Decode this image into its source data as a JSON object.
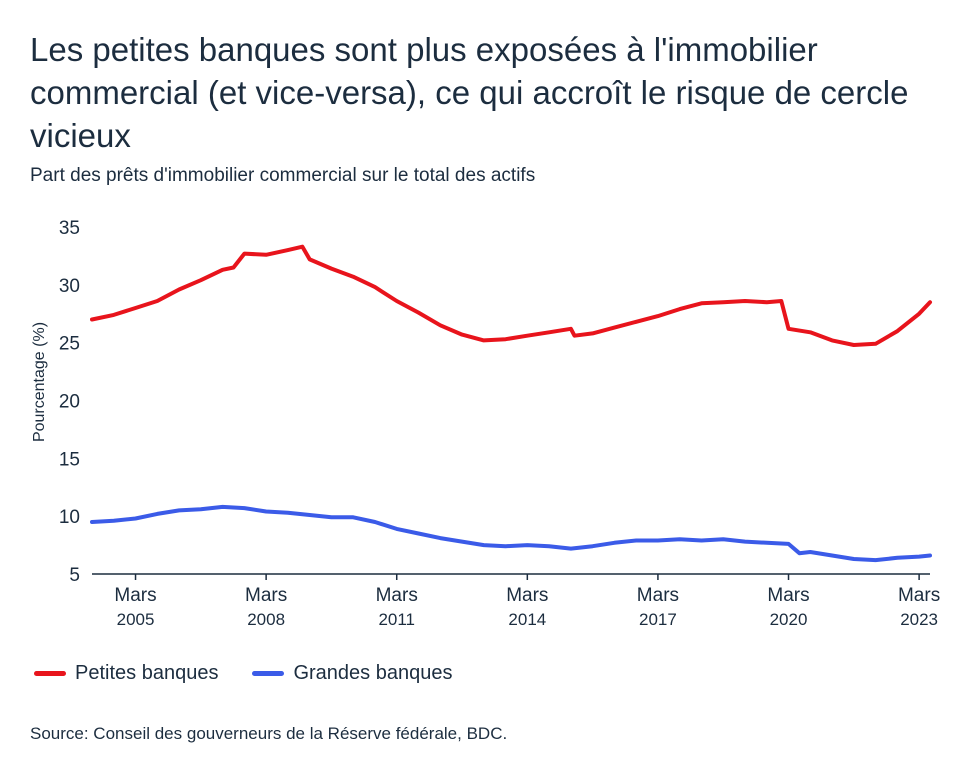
{
  "title": "Les petites banques sont plus exposées à l'immobilier commercial (et vice-versa), ce qui accroît le risque de cercle vicieux",
  "subtitle": "Part des prêts d'immobilier commercial sur le total des actifs",
  "source": "Source: Conseil des gouverneurs de la Réserve fédérale, BDC.",
  "chart_data": {
    "type": "line",
    "title": "Les petites banques sont plus exposées à l'immobilier commercial (et vice-versa), ce qui accroît le risque de cercle vicieux",
    "subtitle": "Part des prêts d'immobilier commercial sur le total des actifs",
    "xlabel": "",
    "ylabel": "Pourcentage (%)",
    "ylim": [
      5,
      35
    ],
    "yticks": [
      5,
      10,
      15,
      20,
      25,
      30,
      35
    ],
    "xlim": [
      "2004-03",
      "2023-06"
    ],
    "xticks": [
      {
        "x": "2005-03",
        "line1": "Mars",
        "line2": "2005"
      },
      {
        "x": "2008-03",
        "line1": "Mars",
        "line2": "2008"
      },
      {
        "x": "2011-03",
        "line1": "Mars",
        "line2": "2011"
      },
      {
        "x": "2014-03",
        "line1": "Mars",
        "line2": "2014"
      },
      {
        "x": "2017-03",
        "line1": "Mars",
        "line2": "2017"
      },
      {
        "x": "2020-03",
        "line1": "Mars",
        "line2": "2020"
      },
      {
        "x": "2023-03",
        "line1": "Mars",
        "line2": "2023"
      }
    ],
    "grid": false,
    "legend_position": "bottom-left",
    "series": [
      {
        "name": "Petites banques",
        "color": "#e8141c",
        "points": [
          [
            "2004-03",
            27.0
          ],
          [
            "2004-09",
            27.4
          ],
          [
            "2005-03",
            28.0
          ],
          [
            "2005-09",
            28.6
          ],
          [
            "2006-03",
            29.6
          ],
          [
            "2006-09",
            30.4
          ],
          [
            "2007-03",
            31.3
          ],
          [
            "2007-06",
            31.5
          ],
          [
            "2007-09",
            32.7
          ],
          [
            "2008-03",
            32.6
          ],
          [
            "2008-09",
            33.0
          ],
          [
            "2009-01",
            33.3
          ],
          [
            "2009-03",
            32.2
          ],
          [
            "2009-09",
            31.4
          ],
          [
            "2010-03",
            30.7
          ],
          [
            "2010-09",
            29.8
          ],
          [
            "2011-03",
            28.6
          ],
          [
            "2011-09",
            27.6
          ],
          [
            "2012-03",
            26.5
          ],
          [
            "2012-09",
            25.7
          ],
          [
            "2013-03",
            25.2
          ],
          [
            "2013-09",
            25.3
          ],
          [
            "2014-03",
            25.6
          ],
          [
            "2014-09",
            25.9
          ],
          [
            "2015-03",
            26.2
          ],
          [
            "2015-04",
            25.6
          ],
          [
            "2015-09",
            25.8
          ],
          [
            "2016-03",
            26.3
          ],
          [
            "2016-09",
            26.8
          ],
          [
            "2017-03",
            27.3
          ],
          [
            "2017-09",
            27.9
          ],
          [
            "2018-03",
            28.4
          ],
          [
            "2018-09",
            28.5
          ],
          [
            "2019-03",
            28.6
          ],
          [
            "2019-09",
            28.5
          ],
          [
            "2020-01",
            28.6
          ],
          [
            "2020-03",
            26.2
          ],
          [
            "2020-09",
            25.9
          ],
          [
            "2021-03",
            25.2
          ],
          [
            "2021-09",
            24.8
          ],
          [
            "2022-03",
            24.9
          ],
          [
            "2022-09",
            26.0
          ],
          [
            "2023-03",
            27.5
          ],
          [
            "2023-06",
            28.5
          ]
        ]
      },
      {
        "name": "Grandes banques",
        "color": "#3b5be8",
        "points": [
          [
            "2004-03",
            9.5
          ],
          [
            "2004-09",
            9.6
          ],
          [
            "2005-03",
            9.8
          ],
          [
            "2005-09",
            10.2
          ],
          [
            "2006-03",
            10.5
          ],
          [
            "2006-09",
            10.6
          ],
          [
            "2007-03",
            10.8
          ],
          [
            "2007-09",
            10.7
          ],
          [
            "2008-03",
            10.4
          ],
          [
            "2008-09",
            10.3
          ],
          [
            "2009-03",
            10.1
          ],
          [
            "2009-09",
            9.9
          ],
          [
            "2010-03",
            9.9
          ],
          [
            "2010-09",
            9.5
          ],
          [
            "2011-03",
            8.9
          ],
          [
            "2011-09",
            8.5
          ],
          [
            "2012-03",
            8.1
          ],
          [
            "2012-09",
            7.8
          ],
          [
            "2013-03",
            7.5
          ],
          [
            "2013-09",
            7.4
          ],
          [
            "2014-03",
            7.5
          ],
          [
            "2014-09",
            7.4
          ],
          [
            "2015-03",
            7.2
          ],
          [
            "2015-09",
            7.4
          ],
          [
            "2016-03",
            7.7
          ],
          [
            "2016-09",
            7.9
          ],
          [
            "2017-03",
            7.9
          ],
          [
            "2017-09",
            8.0
          ],
          [
            "2018-03",
            7.9
          ],
          [
            "2018-09",
            8.0
          ],
          [
            "2019-03",
            7.8
          ],
          [
            "2019-09",
            7.7
          ],
          [
            "2020-03",
            7.6
          ],
          [
            "2020-06",
            6.8
          ],
          [
            "2020-09",
            6.9
          ],
          [
            "2021-03",
            6.6
          ],
          [
            "2021-09",
            6.3
          ],
          [
            "2022-03",
            6.2
          ],
          [
            "2022-09",
            6.4
          ],
          [
            "2023-03",
            6.5
          ],
          [
            "2023-06",
            6.6
          ]
        ]
      }
    ]
  }
}
